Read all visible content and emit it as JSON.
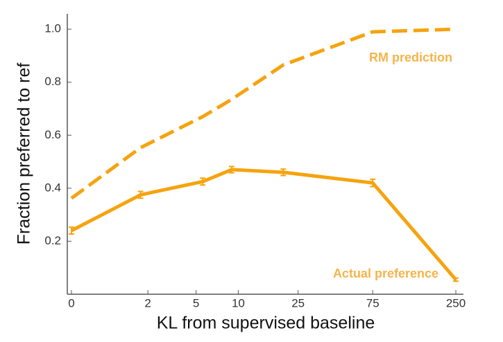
{
  "chart_data": {
    "type": "line",
    "x_label": "KL from supervised baseline",
    "y_label": "Fraction preferred to ref",
    "x_scale": "log1p",
    "xlim": [
      0,
      250
    ],
    "xticks": [
      0,
      2,
      5,
      10,
      25,
      75,
      250
    ],
    "ylim": [
      0,
      1.05
    ],
    "yticks": [
      0.2,
      0.4,
      0.6,
      0.8,
      {
        "value": 1,
        "label": "1.0"
      }
    ],
    "series": [
      {
        "name": "RM prediction",
        "color": "#f6a30f",
        "dash": true,
        "x": [
          0,
          1.7,
          5.6,
          9,
          20,
          75,
          250
        ],
        "values": [
          0.362,
          0.553,
          0.67,
          0.735,
          0.865,
          0.99,
          1.0
        ]
      },
      {
        "name": "Actual preference",
        "color": "#f6a30f",
        "dash": false,
        "x": [
          0,
          1.7,
          5.6,
          9,
          20,
          75,
          250
        ],
        "values": [
          0.24,
          0.375,
          0.425,
          0.47,
          0.46,
          0.42,
          0.055
        ],
        "errors": [
          0.013,
          0.013,
          0.013,
          0.012,
          0.012,
          0.014,
          0.006
        ]
      }
    ]
  }
}
